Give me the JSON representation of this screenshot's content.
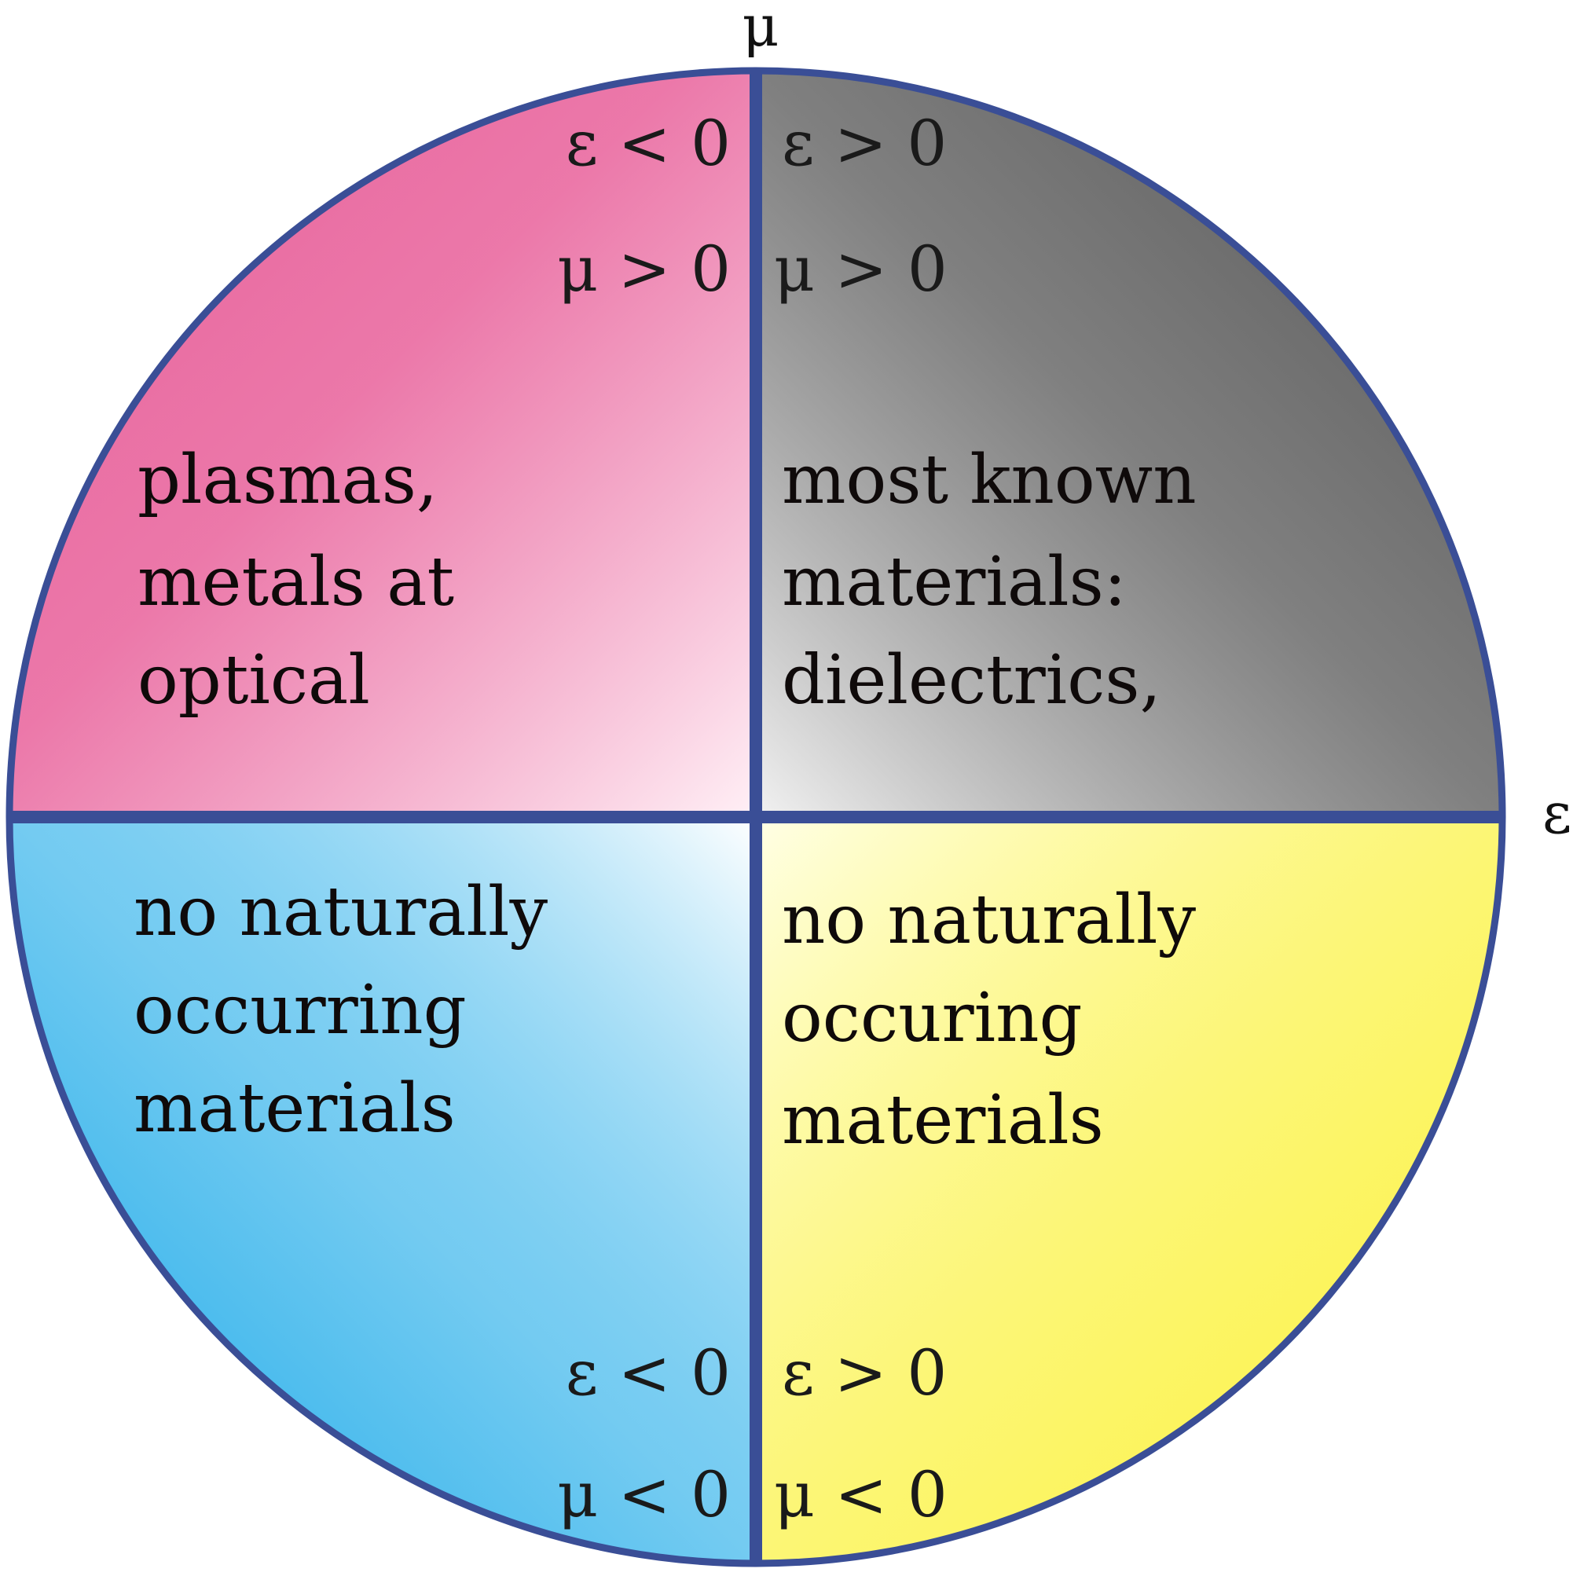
{
  "axes": {
    "vertical_label": "μ",
    "horizontal_label": "ε"
  },
  "colors": {
    "outline": "#3a4e96",
    "pink_strong": "#e8609a",
    "pink_light": "#fff0f6",
    "gray_dark": "#555555",
    "gray_light": "#f2f2f2",
    "blue_strong": "#16a8e8",
    "blue_light": "#ffffff",
    "yellow_strong": "#fbf23a",
    "yellow_light": "#ffffe6"
  },
  "quadrants": {
    "top_left": {
      "eps": "ε < 0",
      "mu": "μ > 0",
      "lines": [
        "plasmas,",
        "metals at",
        "optical"
      ]
    },
    "top_right": {
      "eps": "ε > 0",
      "mu": "μ > 0",
      "lines": [
        "most known",
        "materials:",
        "dielectrics,"
      ]
    },
    "bottom_left": {
      "eps": "ε < 0",
      "mu": "μ < 0",
      "lines": [
        "no naturally",
        "occurring",
        "materials"
      ]
    },
    "bottom_right": {
      "eps": "ε > 0",
      "mu": "μ < 0",
      "lines": [
        "no naturally",
        "occuring",
        "materials"
      ]
    }
  }
}
